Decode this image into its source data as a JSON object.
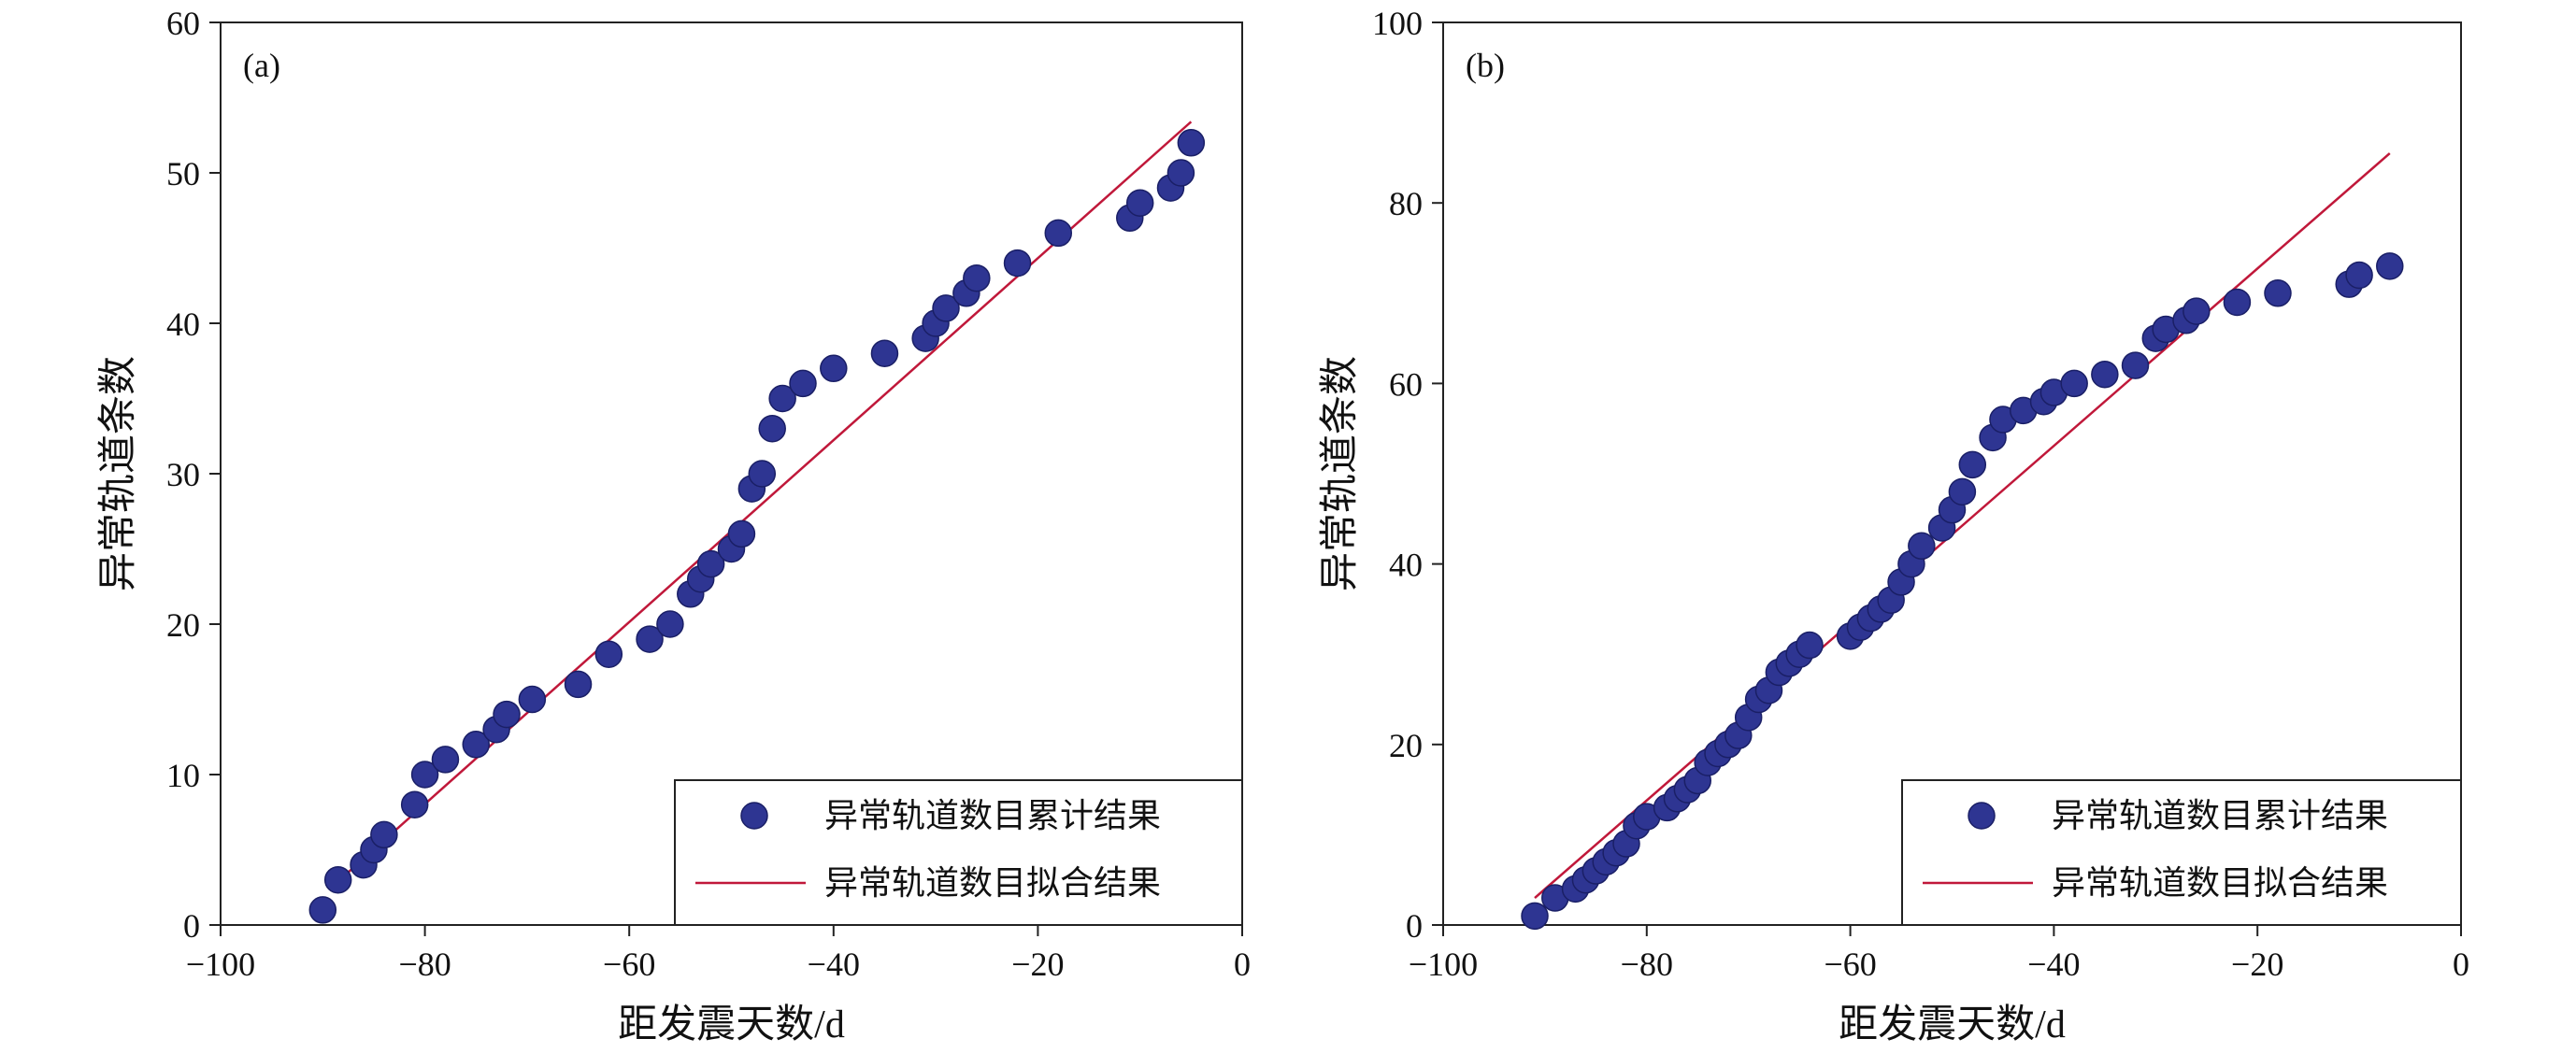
{
  "chart_data": [
    {
      "type": "scatter",
      "panel_label": "(a)",
      "xlabel": "距发震天数/d",
      "ylabel": "异常轨道条数",
      "xlim": [
        -100,
        0
      ],
      "ylim": [
        0,
        60
      ],
      "xticks": [
        -100,
        -80,
        -60,
        -40,
        -20,
        0
      ],
      "yticks": [
        0,
        10,
        20,
        30,
        40,
        50,
        60
      ],
      "xtick_labels": [
        "−100",
        "−80",
        "−60",
        "−40",
        "−20",
        "0"
      ],
      "ytick_labels": [
        "0",
        "10",
        "20",
        "30",
        "40",
        "50",
        "60"
      ],
      "legend_position": "bottom-right",
      "series": [
        {
          "name": "异常轨道数目累计结果",
          "kind": "scatter",
          "color": "#2E3592",
          "points": [
            [
              -90,
              1
            ],
            [
              -88.5,
              3
            ],
            [
              -86,
              4
            ],
            [
              -85,
              5
            ],
            [
              -84,
              6
            ],
            [
              -81,
              8
            ],
            [
              -80,
              10
            ],
            [
              -78,
              11
            ],
            [
              -75,
              12
            ],
            [
              -73,
              13
            ],
            [
              -72,
              14
            ],
            [
              -69.5,
              15
            ],
            [
              -65,
              16
            ],
            [
              -62,
              18
            ],
            [
              -58,
              19
            ],
            [
              -56,
              20
            ],
            [
              -54,
              22
            ],
            [
              -53,
              23
            ],
            [
              -52,
              24
            ],
            [
              -50,
              25
            ],
            [
              -49,
              26
            ],
            [
              -48,
              29
            ],
            [
              -47,
              30
            ],
            [
              -46,
              33
            ],
            [
              -45,
              35
            ],
            [
              -43,
              36
            ],
            [
              -40,
              37
            ],
            [
              -35,
              38
            ],
            [
              -31,
              39
            ],
            [
              -30,
              40
            ],
            [
              -29,
              41
            ],
            [
              -27,
              42
            ],
            [
              -26,
              43
            ],
            [
              -22,
              44
            ],
            [
              -18,
              46
            ],
            [
              -11,
              47
            ],
            [
              -10,
              48
            ],
            [
              -7,
              49
            ],
            [
              -6,
              50
            ],
            [
              -5,
              52
            ]
          ]
        },
        {
          "name": "异常轨道数目拟合结果",
          "kind": "line",
          "color": "#C0183A",
          "points": [
            [
              -89,
              2.6
            ],
            [
              -5,
              53.4
            ]
          ]
        }
      ]
    },
    {
      "type": "scatter",
      "panel_label": "(b)",
      "xlabel": "距发震天数/d",
      "ylabel": "异常轨道条数",
      "xlim": [
        -100,
        0
      ],
      "ylim": [
        0,
        100
      ],
      "xticks": [
        -100,
        -80,
        -60,
        -40,
        -20,
        0
      ],
      "yticks": [
        0,
        20,
        40,
        60,
        80,
        100
      ],
      "xtick_labels": [
        "−100",
        "−80",
        "−60",
        "−40",
        "−20",
        "0"
      ],
      "ytick_labels": [
        "0",
        "20",
        "40",
        "60",
        "80",
        "100"
      ],
      "legend_position": "bottom-right",
      "series": [
        {
          "name": "异常轨道数目累计结果",
          "kind": "scatter",
          "color": "#2E3592",
          "points": [
            [
              -91,
              1
            ],
            [
              -89,
              3
            ],
            [
              -87,
              4
            ],
            [
              -86,
              5
            ],
            [
              -85,
              6
            ],
            [
              -84,
              7
            ],
            [
              -83,
              8
            ],
            [
              -82,
              9
            ],
            [
              -81,
              11
            ],
            [
              -80,
              12
            ],
            [
              -78,
              13
            ],
            [
              -77,
              14
            ],
            [
              -76,
              15
            ],
            [
              -75,
              16
            ],
            [
              -74,
              18
            ],
            [
              -73,
              19
            ],
            [
              -72,
              20
            ],
            [
              -71,
              21
            ],
            [
              -70,
              23
            ],
            [
              -69,
              25
            ],
            [
              -68,
              26
            ],
            [
              -67,
              28
            ],
            [
              -66,
              29
            ],
            [
              -65,
              30
            ],
            [
              -64,
              31
            ],
            [
              -60,
              32
            ],
            [
              -59,
              33
            ],
            [
              -58,
              34
            ],
            [
              -57,
              35
            ],
            [
              -56,
              36
            ],
            [
              -55,
              38
            ],
            [
              -54,
              40
            ],
            [
              -53,
              42
            ],
            [
              -51,
              44
            ],
            [
              -50,
              46
            ],
            [
              -49,
              48
            ],
            [
              -48,
              51
            ],
            [
              -46,
              54
            ],
            [
              -45,
              56
            ],
            [
              -43,
              57
            ],
            [
              -41,
              58
            ],
            [
              -40,
              59
            ],
            [
              -38,
              60
            ],
            [
              -35,
              61
            ],
            [
              -32,
              62
            ],
            [
              -30,
              65
            ],
            [
              -29,
              66
            ],
            [
              -27,
              67
            ],
            [
              -26,
              68
            ],
            [
              -22,
              69
            ],
            [
              -18,
              70
            ],
            [
              -11,
              71
            ],
            [
              -10,
              72
            ],
            [
              -7,
              73
            ]
          ]
        },
        {
          "name": "异常轨道数目拟合结果",
          "kind": "line",
          "color": "#C0183A",
          "points": [
            [
              -91,
              3
            ],
            [
              -7,
              85.5
            ]
          ]
        }
      ]
    }
  ]
}
